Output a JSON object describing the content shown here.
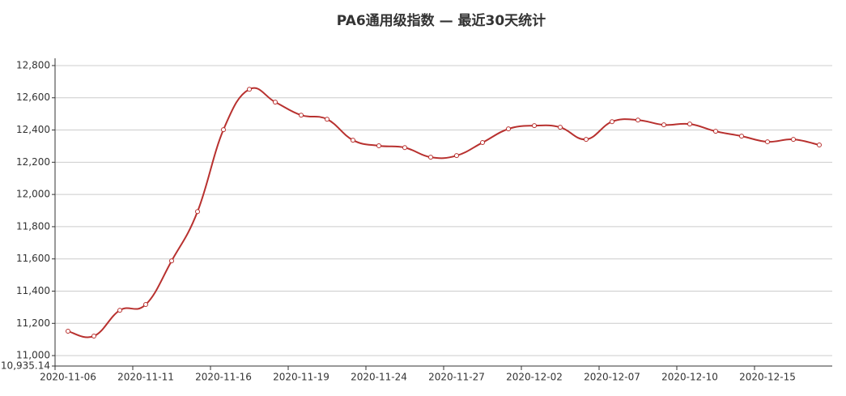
{
  "chart_data": {
    "type": "line",
    "title": "PA6通用级指数  —  最近30天统计",
    "categories": [
      "2020-11-06",
      null,
      null,
      "2020-11-11",
      null,
      null,
      "2020-11-16",
      null,
      null,
      "2020-11-19",
      null,
      null,
      "2020-11-24",
      null,
      null,
      "2020-11-27",
      null,
      null,
      "2020-12-02",
      null,
      null,
      "2020-12-07",
      null,
      null,
      "2020-12-10",
      null,
      null,
      "2020-12-15",
      null,
      null
    ],
    "series": [
      {
        "color": "#b8312f",
        "values": [
          11151,
          11121,
          11281,
          11317,
          11588,
          11894,
          12402,
          12653,
          12573,
          12492,
          12467,
          12337,
          12302,
          12291,
          12231,
          12241,
          12322,
          12407,
          12427,
          12417,
          12342,
          12452,
          12462,
          12432,
          12437,
          12392,
          12362,
          12327,
          12342,
          12307
        ]
      }
    ],
    "ylim": [
      10935.14,
      12845
    ],
    "yticks": [
      {
        "value": 10935.14,
        "label": "10,935.14"
      },
      {
        "value": 11000,
        "label": "11,000"
      },
      {
        "value": 11200,
        "label": "11,200"
      },
      {
        "value": 11400,
        "label": "11,400"
      },
      {
        "value": 11600,
        "label": "11,600"
      },
      {
        "value": 11800,
        "label": "11,800"
      },
      {
        "value": 12000,
        "label": "12,000"
      },
      {
        "value": 12200,
        "label": "12,200"
      },
      {
        "value": 12400,
        "label": "12,400"
      },
      {
        "value": 12600,
        "label": "12,600"
      },
      {
        "value": 12800,
        "label": "12,800"
      }
    ],
    "grid": true
  }
}
